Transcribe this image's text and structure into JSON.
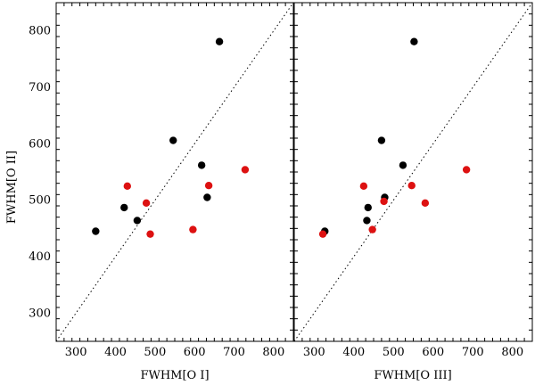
{
  "chart_data": [
    {
      "type": "scatter",
      "xlabel": "FWHM[O I]",
      "ylabel": "FWHM[O II]",
      "xlim": [
        250,
        850
      ],
      "ylim": [
        250,
        850
      ],
      "xticks": [
        300,
        400,
        500,
        600,
        700,
        800
      ],
      "yticks": [
        300,
        400,
        500,
        600,
        700,
        800
      ],
      "reference_line": "y = x (dotted)",
      "series": [
        {
          "color": "#000000",
          "points": [
            {
              "x": 350,
              "y": 445
            },
            {
              "x": 422,
              "y": 487
            },
            {
              "x": 455,
              "y": 464
            },
            {
              "x": 546,
              "y": 606
            },
            {
              "x": 618,
              "y": 562
            },
            {
              "x": 632,
              "y": 505
            },
            {
              "x": 663,
              "y": 781
            }
          ]
        },
        {
          "color": "#dd1111",
          "points": [
            {
              "x": 430,
              "y": 525
            },
            {
              "x": 478,
              "y": 495
            },
            {
              "x": 488,
              "y": 440
            },
            {
              "x": 596,
              "y": 448
            },
            {
              "x": 636,
              "y": 526
            },
            {
              "x": 728,
              "y": 554
            }
          ]
        }
      ]
    },
    {
      "type": "scatter",
      "xlabel": "FWHM[O III]",
      "ylabel": "",
      "xlim": [
        250,
        850
      ],
      "ylim": [
        250,
        850
      ],
      "xticks": [
        300,
        400,
        500,
        600,
        700,
        800
      ],
      "yticks": [
        300,
        400,
        500,
        600,
        700,
        800
      ],
      "reference_line": "y = x (dotted)",
      "series": [
        {
          "color": "#000000",
          "points": [
            {
              "x": 327,
              "y": 445
            },
            {
              "x": 433,
              "y": 464
            },
            {
              "x": 436,
              "y": 487
            },
            {
              "x": 470,
              "y": 606
            },
            {
              "x": 478,
              "y": 505
            },
            {
              "x": 524,
              "y": 562
            },
            {
              "x": 552,
              "y": 781
            }
          ]
        },
        {
          "color": "#dd1111",
          "points": [
            {
              "x": 322,
              "y": 440
            },
            {
              "x": 425,
              "y": 525
            },
            {
              "x": 447,
              "y": 448
            },
            {
              "x": 476,
              "y": 498
            },
            {
              "x": 546,
              "y": 526
            },
            {
              "x": 580,
              "y": 495
            },
            {
              "x": 684,
              "y": 554
            }
          ]
        }
      ]
    }
  ]
}
